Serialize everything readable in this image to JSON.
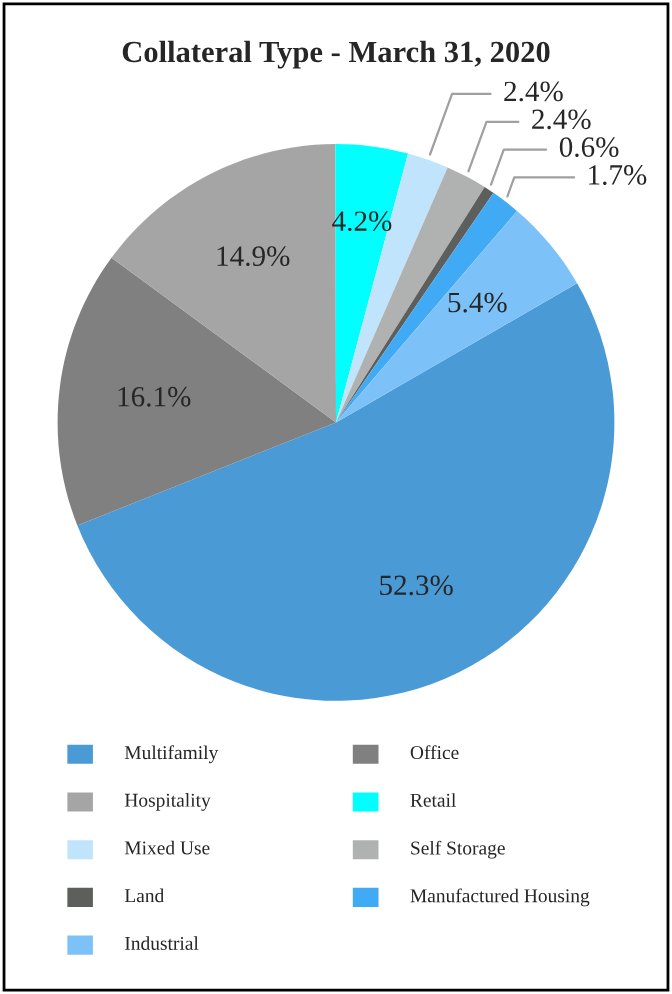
{
  "chart_data": {
    "type": "pie",
    "title": "Collateral Type - March 31, 2020",
    "categories": [
      "Multifamily",
      "Office",
      "Hospitality",
      "Retail",
      "Mixed Use",
      "Self Storage",
      "Land",
      "Manufactured Housing",
      "Industrial"
    ],
    "values": [
      52.3,
      16.1,
      14.9,
      4.2,
      2.4,
      2.4,
      0.6,
      1.7,
      5.4
    ],
    "value_labels": [
      "52.3%",
      "16.1%",
      "14.9%",
      "4.2%",
      "2.4%",
      "2.4%",
      "0.6%",
      "1.7%",
      "5.4%"
    ],
    "colors": [
      "#4a9ad6",
      "#808080",
      "#a5a5a5",
      "#00ffff",
      "#c0e4fc",
      "#b0b2b2",
      "#5d5f5c",
      "#41aaf5",
      "#7cc2f8"
    ],
    "legend": "bottom"
  }
}
